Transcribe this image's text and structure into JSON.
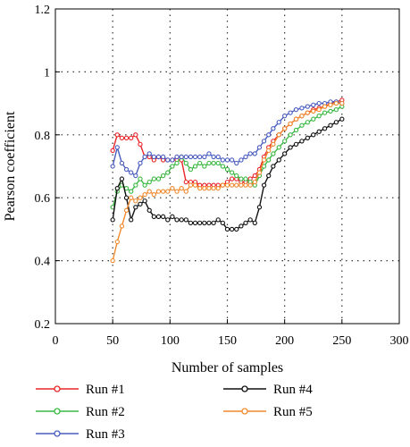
{
  "chart_data": {
    "type": "line",
    "title": "",
    "xlabel": "Number of samples",
    "ylabel": "Pearson coefficient",
    "xlim": [
      0,
      300
    ],
    "ylim": [
      0.2,
      1.2
    ],
    "x_ticks": [
      "0",
      "50",
      "100",
      "150",
      "200",
      "250",
      "300"
    ],
    "y_ticks": [
      "0.2",
      "0.4",
      "0.6",
      "0.8",
      "1",
      "1.2"
    ],
    "grid": "dotted",
    "legend_position": "bottom",
    "series": [
      {
        "name": "Run #1",
        "color": "#e8262a",
        "x": [
          50,
          54,
          58,
          62,
          66,
          70,
          74,
          78,
          82,
          86,
          90,
          94,
          98,
          102,
          106,
          110,
          114,
          118,
          122,
          126,
          130,
          134,
          138,
          142,
          146,
          150,
          154,
          158,
          162,
          166,
          170,
          174,
          178,
          182,
          186,
          190,
          195,
          200,
          205,
          210,
          215,
          220,
          225,
          230,
          235,
          240,
          245,
          250
        ],
        "y": [
          0.75,
          0.8,
          0.79,
          0.79,
          0.79,
          0.8,
          0.77,
          0.73,
          0.73,
          0.72,
          0.73,
          0.72,
          0.72,
          0.72,
          0.72,
          0.72,
          0.65,
          0.65,
          0.65,
          0.64,
          0.64,
          0.64,
          0.64,
          0.64,
          0.64,
          0.65,
          0.66,
          0.66,
          0.65,
          0.65,
          0.66,
          0.67,
          0.69,
          0.73,
          0.76,
          0.78,
          0.8,
          0.82,
          0.835,
          0.85,
          0.86,
          0.87,
          0.88,
          0.885,
          0.89,
          0.9,
          0.905,
          0.91
        ]
      },
      {
        "name": "Run #2",
        "color": "#3cb843",
        "x": [
          50,
          54,
          58,
          62,
          66,
          70,
          74,
          78,
          82,
          86,
          90,
          94,
          98,
          102,
          106,
          110,
          114,
          118,
          122,
          126,
          130,
          134,
          138,
          142,
          146,
          150,
          154,
          158,
          162,
          166,
          170,
          174,
          178,
          182,
          186,
          190,
          195,
          200,
          205,
          210,
          215,
          220,
          225,
          230,
          235,
          240,
          245,
          250
        ],
        "y": [
          0.57,
          0.62,
          0.64,
          0.63,
          0.62,
          0.64,
          0.66,
          0.64,
          0.65,
          0.66,
          0.66,
          0.67,
          0.68,
          0.7,
          0.71,
          0.73,
          0.71,
          0.69,
          0.7,
          0.71,
          0.7,
          0.71,
          0.71,
          0.71,
          0.7,
          0.69,
          0.68,
          0.67,
          0.66,
          0.66,
          0.65,
          0.64,
          0.67,
          0.7,
          0.72,
          0.74,
          0.76,
          0.78,
          0.8,
          0.815,
          0.83,
          0.84,
          0.85,
          0.86,
          0.87,
          0.875,
          0.88,
          0.89
        ]
      },
      {
        "name": "Run #3",
        "color": "#4a5dbf",
        "x": [
          50,
          54,
          58,
          62,
          66,
          70,
          74,
          78,
          82,
          86,
          90,
          94,
          98,
          102,
          106,
          110,
          114,
          118,
          122,
          126,
          130,
          134,
          138,
          142,
          146,
          150,
          154,
          158,
          162,
          166,
          170,
          174,
          178,
          182,
          186,
          190,
          195,
          200,
          205,
          210,
          215,
          220,
          225,
          230,
          235,
          240,
          245,
          250
        ],
        "y": [
          0.7,
          0.76,
          0.71,
          0.69,
          0.68,
          0.67,
          0.71,
          0.73,
          0.74,
          0.73,
          0.73,
          0.73,
          0.72,
          0.72,
          0.73,
          0.73,
          0.73,
          0.73,
          0.73,
          0.73,
          0.73,
          0.74,
          0.73,
          0.73,
          0.72,
          0.72,
          0.72,
          0.71,
          0.72,
          0.73,
          0.74,
          0.74,
          0.76,
          0.78,
          0.8,
          0.82,
          0.84,
          0.86,
          0.87,
          0.88,
          0.885,
          0.89,
          0.895,
          0.9,
          0.9,
          0.905,
          0.905,
          0.9
        ]
      },
      {
        "name": "Run #4",
        "color": "#111111",
        "x": [
          50,
          54,
          58,
          62,
          66,
          70,
          74,
          78,
          82,
          86,
          90,
          94,
          98,
          102,
          106,
          110,
          114,
          118,
          122,
          126,
          130,
          134,
          138,
          142,
          146,
          150,
          154,
          158,
          162,
          166,
          170,
          174,
          178,
          182,
          186,
          190,
          195,
          200,
          205,
          210,
          215,
          220,
          225,
          230,
          235,
          240,
          245,
          250
        ],
        "y": [
          0.53,
          0.63,
          0.66,
          0.6,
          0.53,
          0.57,
          0.58,
          0.59,
          0.56,
          0.54,
          0.54,
          0.54,
          0.53,
          0.54,
          0.53,
          0.53,
          0.53,
          0.52,
          0.52,
          0.52,
          0.52,
          0.52,
          0.52,
          0.53,
          0.52,
          0.5,
          0.5,
          0.5,
          0.51,
          0.52,
          0.53,
          0.52,
          0.57,
          0.64,
          0.67,
          0.7,
          0.72,
          0.74,
          0.76,
          0.77,
          0.78,
          0.79,
          0.8,
          0.81,
          0.82,
          0.83,
          0.84,
          0.85
        ]
      },
      {
        "name": "Run #5",
        "color": "#f08a2e",
        "x": [
          50,
          54,
          58,
          62,
          66,
          70,
          74,
          78,
          82,
          86,
          90,
          94,
          98,
          102,
          106,
          110,
          114,
          118,
          122,
          126,
          130,
          134,
          138,
          142,
          146,
          150,
          154,
          158,
          162,
          166,
          170,
          174,
          178,
          182,
          186,
          190,
          195,
          200,
          205,
          210,
          215,
          220,
          225,
          230,
          235,
          240,
          245,
          250
        ],
        "y": [
          0.4,
          0.46,
          0.51,
          0.56,
          0.6,
          0.59,
          0.6,
          0.61,
          0.62,
          0.61,
          0.62,
          0.62,
          0.62,
          0.63,
          0.62,
          0.63,
          0.62,
          0.64,
          0.64,
          0.63,
          0.63,
          0.63,
          0.63,
          0.63,
          0.64,
          0.64,
          0.64,
          0.64,
          0.64,
          0.64,
          0.64,
          0.65,
          0.68,
          0.72,
          0.75,
          0.77,
          0.8,
          0.82,
          0.835,
          0.85,
          0.86,
          0.87,
          0.875,
          0.88,
          0.89,
          0.895,
          0.9,
          0.9
        ]
      }
    ]
  }
}
